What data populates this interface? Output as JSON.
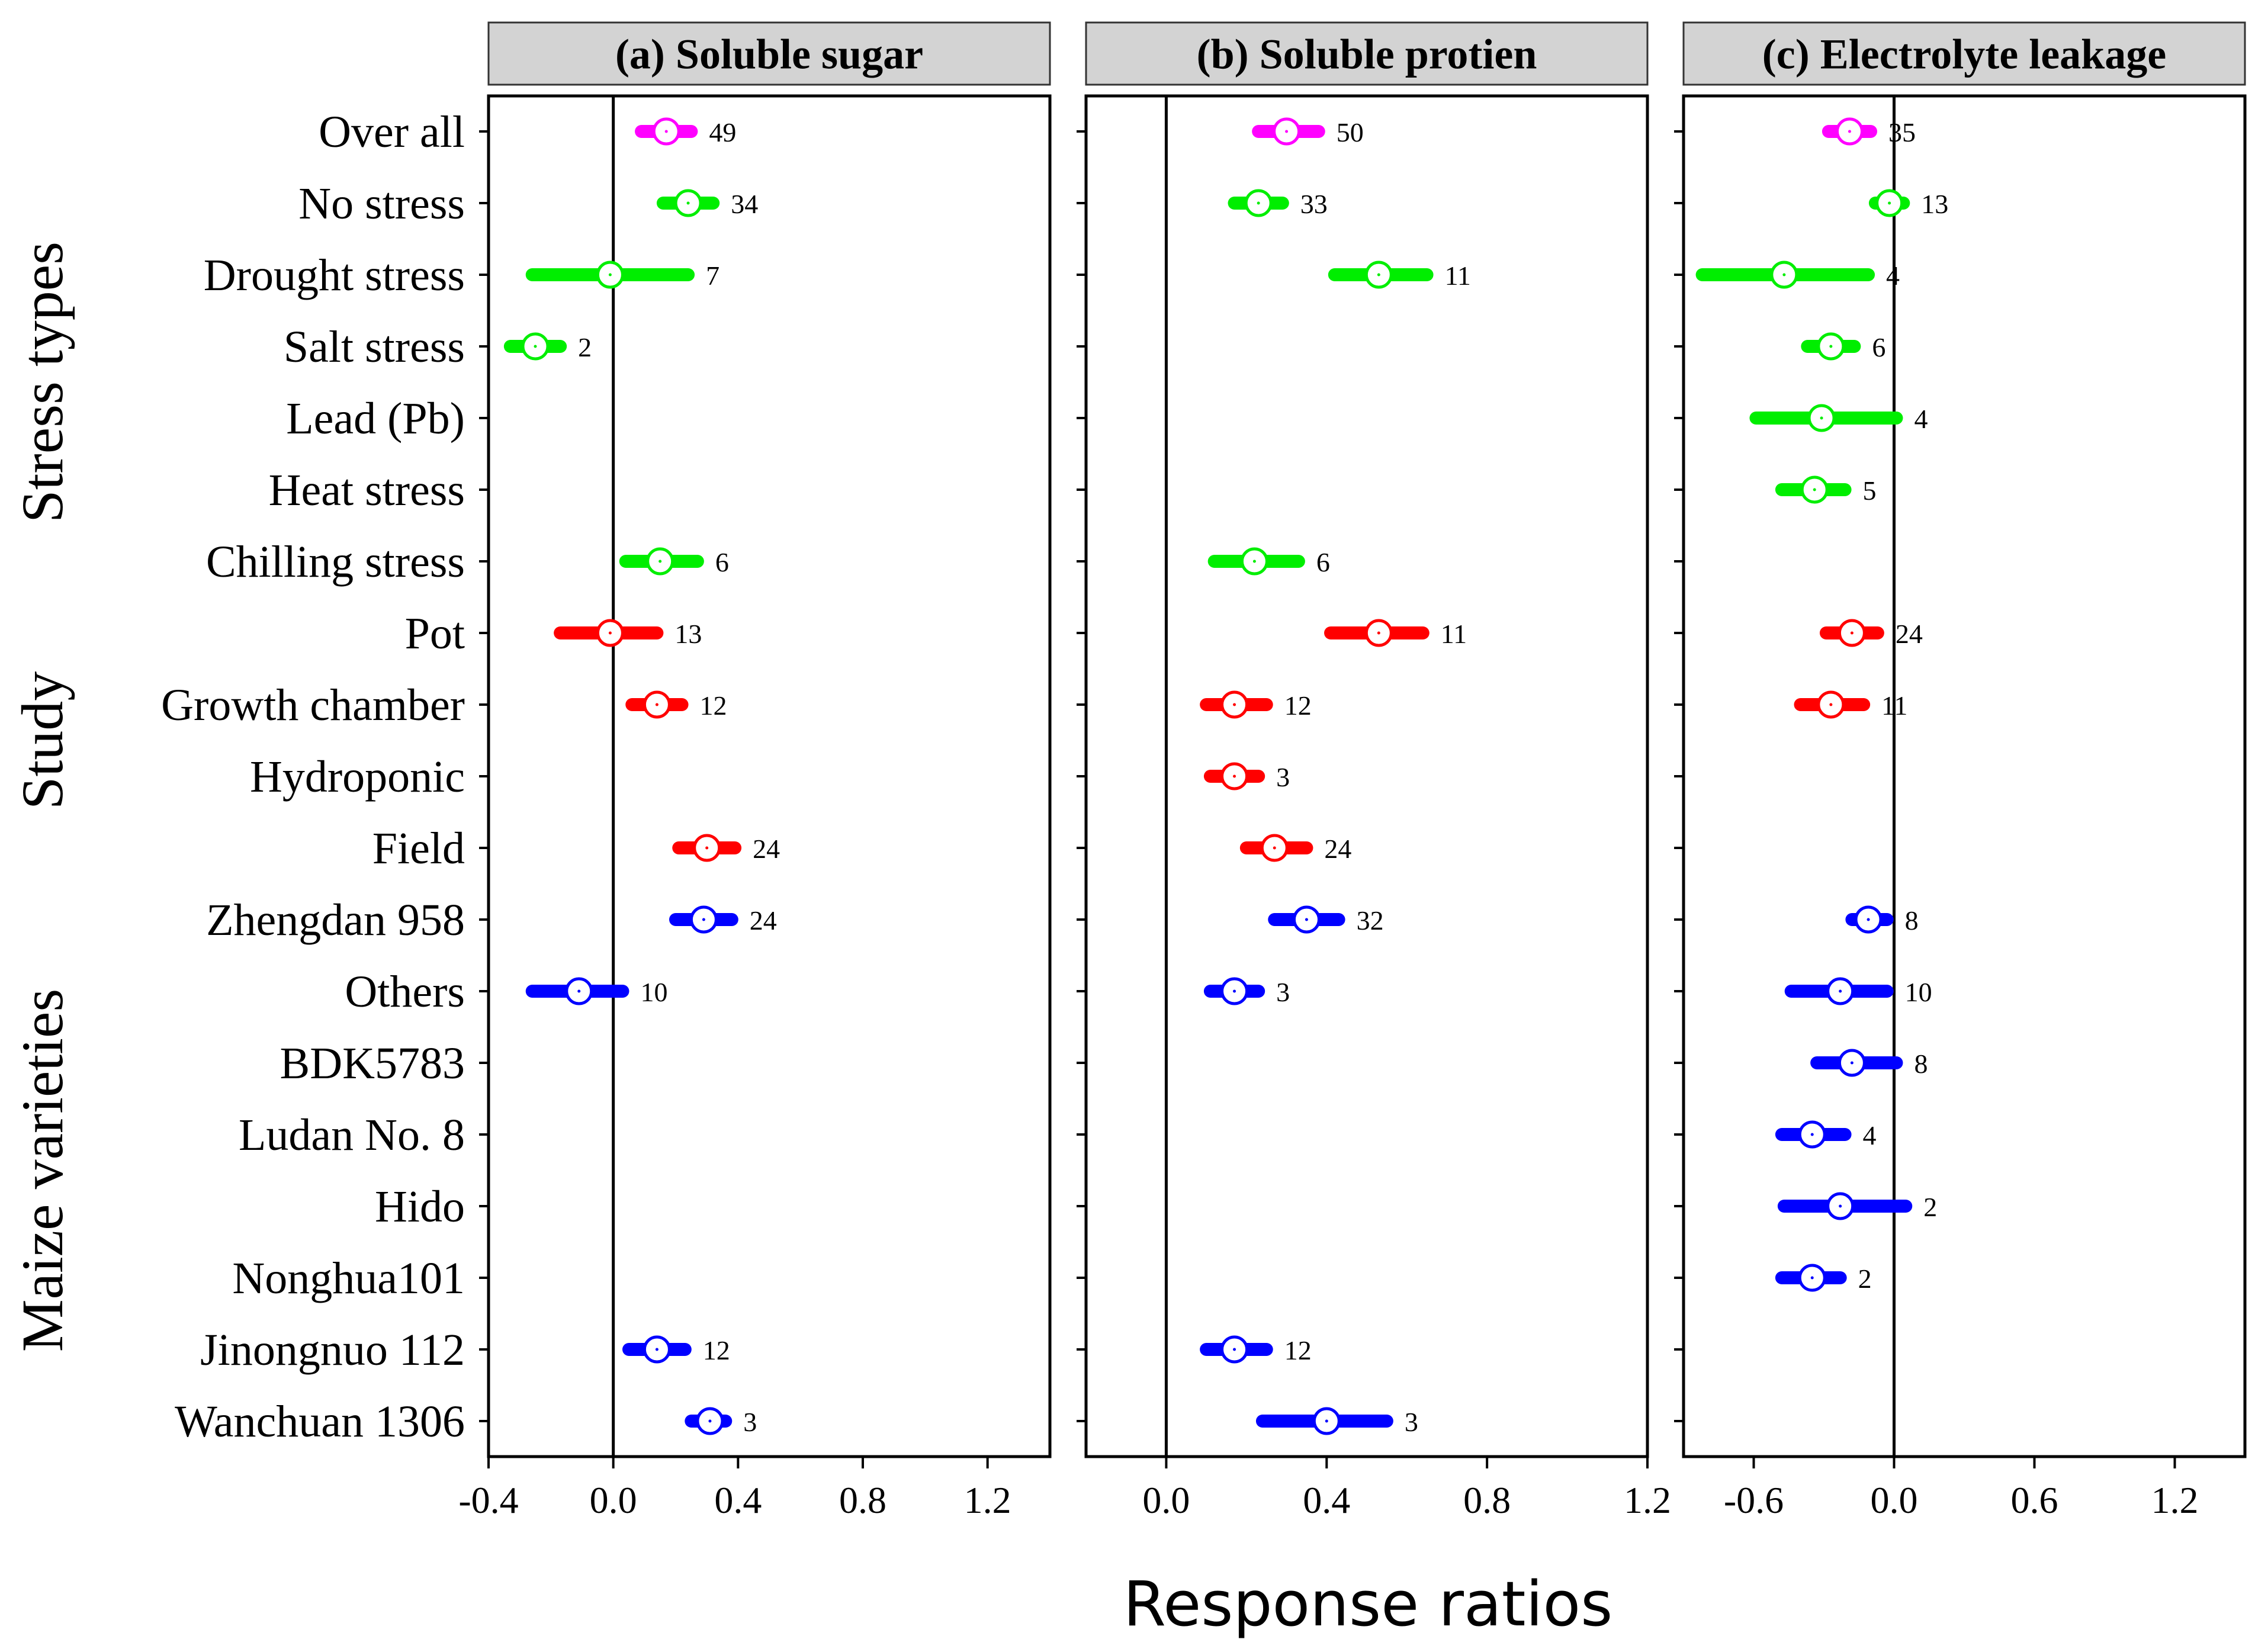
{
  "chart_data": {
    "type": "forest",
    "xlabel": "Response ratios",
    "categories": [
      "Over all",
      "No stress",
      "Drought stress",
      "Salt stress",
      "Lead (Pb)",
      "Heat stress",
      "Chilling stress",
      "Pot",
      "Growth chamber",
      "Hydroponic",
      "Field",
      "Zhengdan 958",
      "Others",
      "BDK5783",
      "Ludan No. 8",
      "Hido",
      "Nonghua101",
      "Jinongnuo 112",
      "Wanchuan 1306"
    ],
    "groups": [
      {
        "name": "Stress types",
        "from": 1,
        "to": 6
      },
      {
        "name": "Study",
        "from": 7,
        "to": 10
      },
      {
        "name": "Maize varieties",
        "from": 11,
        "to": 18
      }
    ],
    "colors": {
      "overall": "#ff00ff",
      "stress": "#00ee00",
      "study": "#ff0000",
      "variety": "#0000ff"
    },
    "row_colors": [
      "overall",
      "stress",
      "stress",
      "stress",
      "stress",
      "stress",
      "stress",
      "study",
      "study",
      "study",
      "study",
      "variety",
      "variety",
      "variety",
      "variety",
      "variety",
      "variety",
      "variety",
      "variety"
    ],
    "panels": [
      {
        "title": "(a) Soluble sugar",
        "xlim": [
          -0.4,
          1.4
        ],
        "xticks": [
          -0.4,
          0.0,
          0.4,
          0.8,
          1.2
        ],
        "xtick_labels": [
          "-0.4",
          "0.0",
          "0.4",
          "0.8",
          "1.2"
        ],
        "points": [
          {
            "row": 0,
            "mean": 0.17,
            "lo": 0.09,
            "hi": 0.25,
            "n": "49"
          },
          {
            "row": 1,
            "mean": 0.24,
            "lo": 0.16,
            "hi": 0.32,
            "n": "34"
          },
          {
            "row": 2,
            "mean": -0.01,
            "lo": -0.26,
            "hi": 0.24,
            "n": "7"
          },
          {
            "row": 3,
            "mean": -0.25,
            "lo": -0.33,
            "hi": -0.17,
            "n": "2"
          },
          {
            "row": 6,
            "mean": 0.15,
            "lo": 0.04,
            "hi": 0.27,
            "n": "6"
          },
          {
            "row": 7,
            "mean": -0.01,
            "lo": -0.17,
            "hi": 0.14,
            "n": "13"
          },
          {
            "row": 8,
            "mean": 0.14,
            "lo": 0.06,
            "hi": 0.22,
            "n": "12"
          },
          {
            "row": 10,
            "mean": 0.3,
            "lo": 0.21,
            "hi": 0.39,
            "n": "24"
          },
          {
            "row": 11,
            "mean": 0.29,
            "lo": 0.2,
            "hi": 0.38,
            "n": "24"
          },
          {
            "row": 12,
            "mean": -0.11,
            "lo": -0.26,
            "hi": 0.03,
            "n": "10"
          },
          {
            "row": 17,
            "mean": 0.14,
            "lo": 0.05,
            "hi": 0.23,
            "n": "12"
          },
          {
            "row": 18,
            "mean": 0.31,
            "lo": 0.25,
            "hi": 0.36,
            "n": "3"
          }
        ]
      },
      {
        "title": "(b) Soluble protien",
        "xlim": [
          -0.2,
          1.2
        ],
        "xticks": [
          0.0,
          0.4,
          0.8,
          1.2
        ],
        "xtick_labels": [
          "0.0",
          "0.4",
          "0.8",
          "1.2"
        ],
        "points": [
          {
            "row": 0,
            "mean": 0.3,
            "lo": 0.23,
            "hi": 0.38,
            "n": "50"
          },
          {
            "row": 1,
            "mean": 0.23,
            "lo": 0.17,
            "hi": 0.29,
            "n": "33"
          },
          {
            "row": 2,
            "mean": 0.53,
            "lo": 0.42,
            "hi": 0.65,
            "n": "11"
          },
          {
            "row": 6,
            "mean": 0.22,
            "lo": 0.12,
            "hi": 0.33,
            "n": "6"
          },
          {
            "row": 7,
            "mean": 0.53,
            "lo": 0.41,
            "hi": 0.64,
            "n": "11"
          },
          {
            "row": 8,
            "mean": 0.17,
            "lo": 0.1,
            "hi": 0.25,
            "n": "12"
          },
          {
            "row": 9,
            "mean": 0.17,
            "lo": 0.11,
            "hi": 0.23,
            "n": "3"
          },
          {
            "row": 10,
            "mean": 0.27,
            "lo": 0.2,
            "hi": 0.35,
            "n": "24"
          },
          {
            "row": 11,
            "mean": 0.35,
            "lo": 0.27,
            "hi": 0.43,
            "n": "32"
          },
          {
            "row": 12,
            "mean": 0.17,
            "lo": 0.11,
            "hi": 0.23,
            "n": "3"
          },
          {
            "row": 17,
            "mean": 0.17,
            "lo": 0.1,
            "hi": 0.25,
            "n": "12"
          },
          {
            "row": 18,
            "mean": 0.4,
            "lo": 0.24,
            "hi": 0.55,
            "n": "3"
          }
        ]
      },
      {
        "title": "(c) Electrolyte leakage",
        "xlim": [
          -0.9,
          1.5
        ],
        "xticks": [
          -0.6,
          0.0,
          0.6,
          1.2
        ],
        "xtick_labels": [
          "-0.6",
          "0.0",
          "0.6",
          "1.2"
        ],
        "points": [
          {
            "row": 0,
            "mean": -0.19,
            "lo": -0.28,
            "hi": -0.1,
            "n": "35"
          },
          {
            "row": 1,
            "mean": -0.02,
            "lo": -0.08,
            "hi": 0.04,
            "n": "13"
          },
          {
            "row": 2,
            "mean": -0.47,
            "lo": -0.82,
            "hi": -0.11,
            "n": "4"
          },
          {
            "row": 3,
            "mean": -0.27,
            "lo": -0.37,
            "hi": -0.17,
            "n": "6"
          },
          {
            "row": 4,
            "mean": -0.31,
            "lo": -0.59,
            "hi": 0.01,
            "n": "4"
          },
          {
            "row": 5,
            "mean": -0.34,
            "lo": -0.48,
            "hi": -0.21,
            "n": "5"
          },
          {
            "row": 7,
            "mean": -0.18,
            "lo": -0.29,
            "hi": -0.07,
            "n": "24"
          },
          {
            "row": 8,
            "mean": -0.27,
            "lo": -0.4,
            "hi": -0.13,
            "n": "11"
          },
          {
            "row": 11,
            "mean": -0.11,
            "lo": -0.18,
            "hi": -0.03,
            "n": "8"
          },
          {
            "row": 12,
            "mean": -0.23,
            "lo": -0.44,
            "hi": -0.03,
            "n": "10"
          },
          {
            "row": 13,
            "mean": -0.18,
            "lo": -0.33,
            "hi": 0.01,
            "n": "8"
          },
          {
            "row": 14,
            "mean": -0.35,
            "lo": -0.48,
            "hi": -0.21,
            "n": "4"
          },
          {
            "row": 15,
            "mean": -0.23,
            "lo": -0.47,
            "hi": 0.05,
            "n": "2"
          },
          {
            "row": 16,
            "mean": -0.35,
            "lo": -0.48,
            "hi": -0.23,
            "n": "2"
          }
        ]
      }
    ]
  }
}
